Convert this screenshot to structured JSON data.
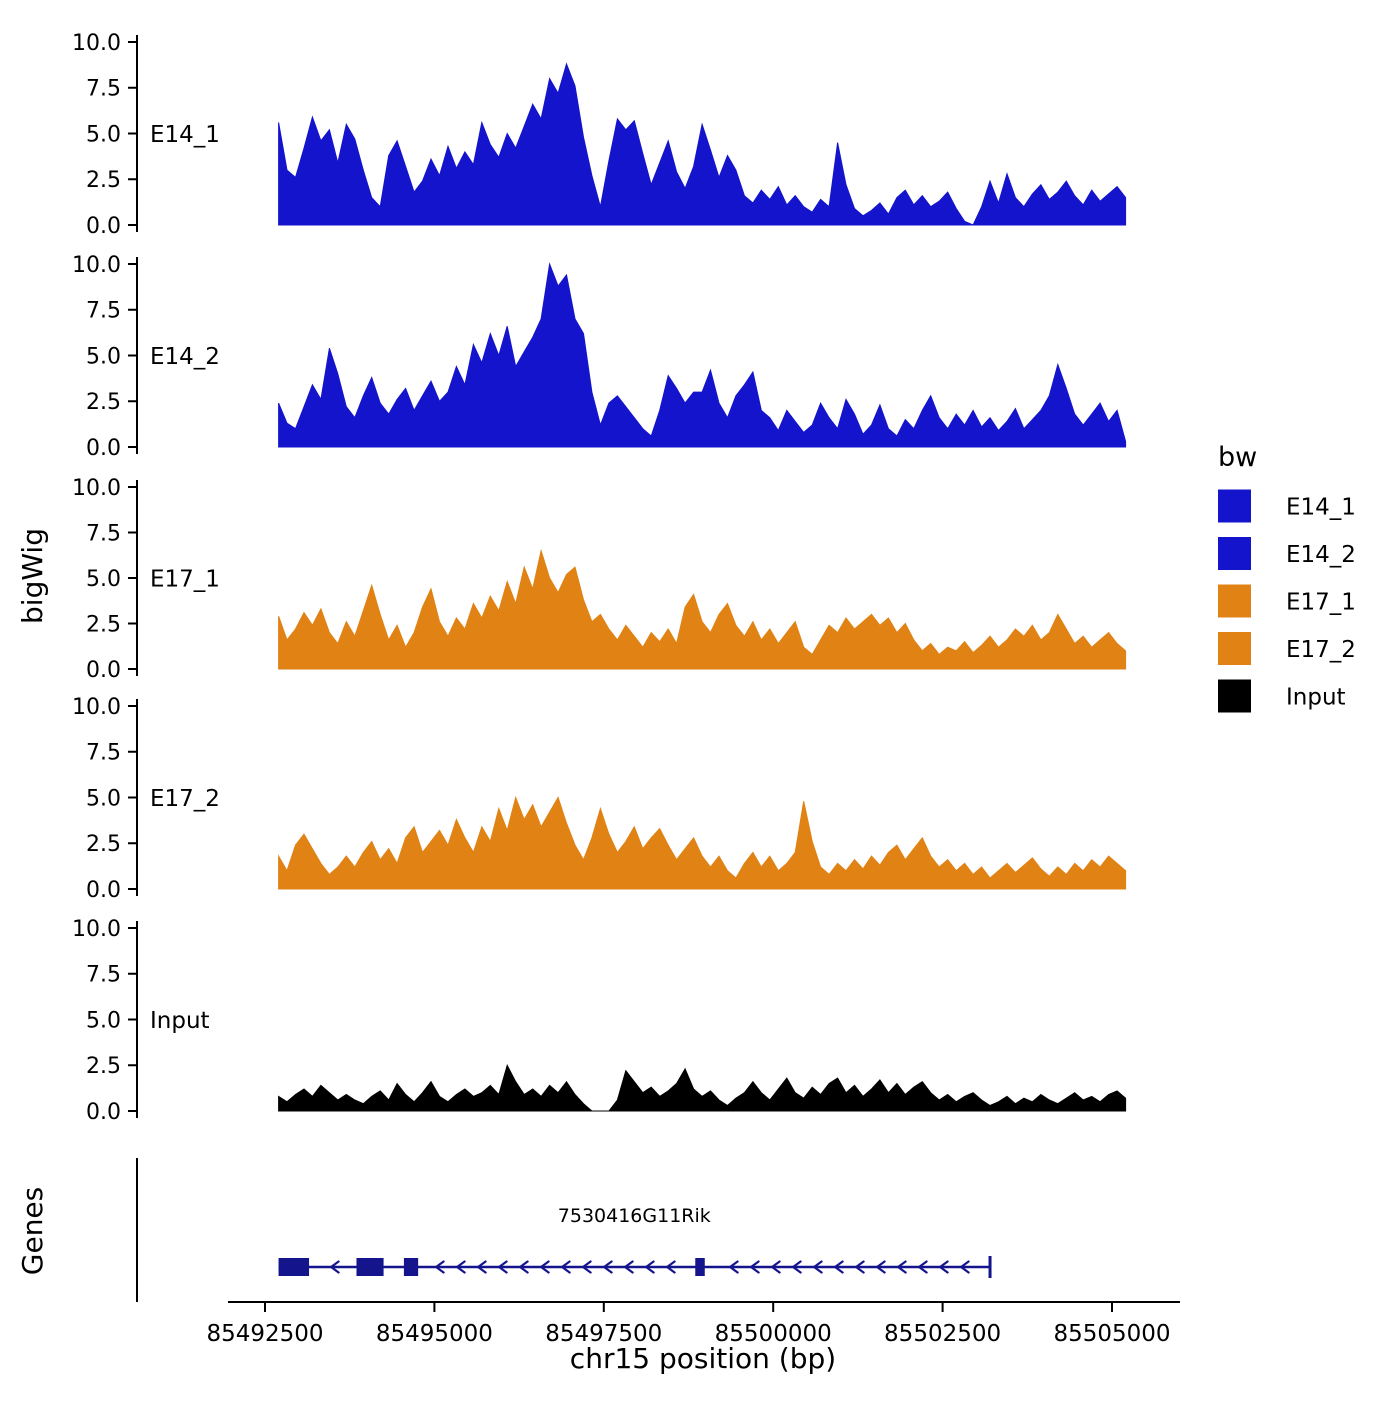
{
  "figure": {
    "background": "#ffffff"
  },
  "y_axis_title": "bigWig",
  "genes_axis_title": "Genes",
  "x_axis": {
    "label": "chr15 position (bp)",
    "ticks": [
      85492500,
      85495000,
      85497500,
      85500000,
      85502500,
      85505000
    ],
    "tick_labels": [
      "85492500",
      "85495000",
      "85497500",
      "85500000",
      "85502500",
      "85505000"
    ]
  },
  "legend": {
    "title": "bw",
    "entries": [
      {
        "label": "E14_1",
        "color": "#1414CC"
      },
      {
        "label": "E14_2",
        "color": "#1414CC"
      },
      {
        "label": "E17_1",
        "color": "#E08214"
      },
      {
        "label": "E17_2",
        "color": "#E08214"
      },
      {
        "label": "Input",
        "color": "#000000"
      }
    ]
  },
  "chart_data": {
    "type": "area",
    "title": "",
    "xlabel": "chr15 position (bp)",
    "ylabel": "bigWig",
    "x_start": 85492700,
    "x_step": 125,
    "x_range": [
      85492500,
      85505000
    ],
    "ylim": [
      0,
      10
    ],
    "y_ticks": [
      0,
      2.5,
      5,
      7.5,
      10
    ],
    "y_tick_labels": [
      "0.0",
      "2.5",
      "5.0",
      "7.5",
      "10.0"
    ],
    "grid": false,
    "legend_position": "right",
    "series": [
      {
        "name": "E14_1",
        "color": "#1414CC",
        "values": [
          5.6,
          3.0,
          2.6,
          4.2,
          5.9,
          4.6,
          5.2,
          3.4,
          5.5,
          4.7,
          3.0,
          1.5,
          1.0,
          3.8,
          4.6,
          3.2,
          1.8,
          2.4,
          3.6,
          2.7,
          4.3,
          3.1,
          4.0,
          3.3,
          5.6,
          4.4,
          3.7,
          5.0,
          4.2,
          5.4,
          6.6,
          5.8,
          8.0,
          7.2,
          8.8,
          7.6,
          4.8,
          2.7,
          1.0,
          3.5,
          5.8,
          5.2,
          5.7,
          3.9,
          2.2,
          3.4,
          4.6,
          2.9,
          2.0,
          3.2,
          5.5,
          4.1,
          2.6,
          3.8,
          3.0,
          1.6,
          1.2,
          1.9,
          1.4,
          2.1,
          1.1,
          1.6,
          1.0,
          0.7,
          1.4,
          1.0,
          4.5,
          2.2,
          0.9,
          0.5,
          0.8,
          1.2,
          0.6,
          1.5,
          1.9,
          1.1,
          1.6,
          1.0,
          1.3,
          1.8,
          0.9,
          0.2,
          0.0,
          1.0,
          2.4,
          1.2,
          2.8,
          1.5,
          1.0,
          1.7,
          2.2,
          1.4,
          1.8,
          2.4,
          1.6,
          1.1,
          1.9,
          1.3,
          1.7,
          2.1,
          1.5
        ]
      },
      {
        "name": "E14_2",
        "color": "#1414CC",
        "values": [
          2.4,
          1.3,
          1.0,
          2.2,
          3.4,
          2.6,
          5.4,
          4.0,
          2.2,
          1.6,
          2.8,
          3.8,
          2.4,
          1.8,
          2.6,
          3.2,
          2.0,
          2.8,
          3.6,
          2.5,
          3.0,
          4.4,
          3.4,
          5.6,
          4.6,
          6.2,
          5.0,
          6.6,
          4.4,
          5.2,
          6.0,
          7.0,
          10.0,
          8.8,
          9.4,
          7.0,
          6.2,
          3.0,
          1.2,
          2.4,
          2.8,
          2.2,
          1.6,
          1.0,
          0.6,
          2.0,
          3.9,
          3.2,
          2.4,
          3.0,
          3.0,
          4.2,
          2.4,
          1.6,
          2.8,
          3.4,
          4.1,
          2.0,
          1.6,
          0.9,
          2.0,
          1.4,
          0.8,
          1.2,
          2.4,
          1.6,
          1.0,
          2.6,
          1.8,
          0.7,
          1.2,
          2.3,
          1.0,
          0.6,
          1.5,
          1.0,
          2.0,
          2.8,
          1.6,
          1.0,
          1.8,
          1.2,
          2.0,
          1.1,
          1.6,
          0.9,
          1.4,
          2.1,
          1.0,
          1.5,
          2.0,
          2.8,
          4.5,
          3.2,
          1.8,
          1.2,
          1.8,
          2.4,
          1.4,
          2.0,
          0.3
        ]
      },
      {
        "name": "E17_1",
        "color": "#E08214",
        "values": [
          2.9,
          1.6,
          2.2,
          3.1,
          2.4,
          3.3,
          2.0,
          1.4,
          2.6,
          1.8,
          3.2,
          4.6,
          3.0,
          1.6,
          2.4,
          1.2,
          2.0,
          3.4,
          4.4,
          2.6,
          1.8,
          2.8,
          2.2,
          3.6,
          2.8,
          4.0,
          3.2,
          4.8,
          3.6,
          5.6,
          4.4,
          6.5,
          5.0,
          4.2,
          5.2,
          5.6,
          3.8,
          2.6,
          3.0,
          2.2,
          1.6,
          2.4,
          1.8,
          1.2,
          2.0,
          1.5,
          2.2,
          1.4,
          3.4,
          4.1,
          2.6,
          2.0,
          3.0,
          3.6,
          2.4,
          1.8,
          2.6,
          1.6,
          2.2,
          1.4,
          2.0,
          2.6,
          1.2,
          0.8,
          1.6,
          2.4,
          2.0,
          2.8,
          2.2,
          2.6,
          3.0,
          2.4,
          2.8,
          2.0,
          2.5,
          1.6,
          1.0,
          1.4,
          0.8,
          1.2,
          1.0,
          1.5,
          0.9,
          1.3,
          1.8,
          1.2,
          1.6,
          2.2,
          1.8,
          2.4,
          1.6,
          2.0,
          3.0,
          2.2,
          1.4,
          1.8,
          1.2,
          1.6,
          2.0,
          1.4,
          1.0
        ]
      },
      {
        "name": "E17_2",
        "color": "#E08214",
        "values": [
          1.8,
          1.0,
          2.4,
          3.0,
          2.2,
          1.4,
          0.8,
          1.2,
          1.8,
          1.2,
          2.0,
          2.6,
          1.6,
          2.2,
          1.4,
          2.8,
          3.4,
          2.0,
          2.6,
          3.2,
          2.4,
          3.8,
          2.8,
          2.0,
          3.4,
          2.6,
          4.4,
          3.2,
          5.0,
          3.8,
          4.6,
          3.4,
          4.2,
          5.0,
          3.6,
          2.4,
          1.6,
          2.8,
          4.4,
          3.0,
          2.0,
          2.6,
          3.4,
          2.2,
          2.8,
          3.3,
          2.4,
          1.6,
          2.2,
          2.8,
          1.8,
          1.2,
          1.8,
          1.0,
          0.6,
          1.4,
          2.0,
          1.2,
          1.8,
          1.0,
          1.4,
          2.0,
          4.8,
          2.6,
          1.2,
          0.8,
          1.4,
          1.0,
          1.6,
          1.1,
          1.8,
          1.3,
          2.0,
          2.4,
          1.6,
          2.2,
          2.8,
          1.8,
          1.2,
          1.6,
          1.0,
          1.4,
          0.8,
          1.2,
          0.6,
          1.0,
          1.4,
          0.9,
          1.3,
          1.7,
          1.1,
          0.7,
          1.2,
          0.8,
          1.4,
          1.0,
          1.6,
          1.2,
          1.8,
          1.4,
          1.0
        ]
      },
      {
        "name": "Input",
        "color": "#000000",
        "values": [
          0.8,
          0.5,
          0.9,
          1.2,
          0.8,
          1.4,
          1.0,
          0.6,
          0.9,
          0.6,
          0.4,
          0.8,
          1.1,
          0.6,
          1.5,
          0.9,
          0.5,
          1.0,
          1.6,
          0.8,
          0.5,
          0.9,
          1.2,
          0.8,
          1.0,
          1.4,
          0.9,
          2.5,
          1.6,
          0.9,
          1.2,
          0.8,
          1.4,
          1.0,
          1.6,
          0.9,
          0.4,
          0.0,
          0.0,
          0.0,
          0.6,
          2.2,
          1.6,
          1.0,
          1.3,
          0.8,
          1.1,
          1.5,
          2.3,
          1.2,
          0.8,
          1.1,
          0.6,
          0.3,
          0.7,
          1.0,
          1.6,
          1.0,
          0.6,
          1.2,
          1.8,
          1.0,
          0.7,
          1.3,
          0.9,
          1.5,
          1.8,
          1.0,
          1.4,
          0.8,
          1.2,
          1.7,
          1.0,
          1.5,
          0.9,
          1.3,
          1.6,
          1.0,
          0.6,
          0.9,
          0.5,
          0.8,
          1.0,
          0.6,
          0.3,
          0.5,
          0.8,
          0.4,
          0.7,
          0.5,
          0.9,
          0.6,
          0.4,
          0.7,
          1.0,
          0.6,
          0.8,
          0.5,
          0.9,
          1.1,
          0.7
        ]
      }
    ]
  },
  "genes": {
    "label": "7530416G11Rik",
    "strand": "-",
    "start": 85492700,
    "end": 85503200,
    "color": "#14148C",
    "exons": [
      [
        85492700,
        85493150
      ],
      [
        85493850,
        85494250
      ],
      [
        85494550,
        85494760
      ],
      [
        85498850,
        85498990
      ]
    ]
  }
}
